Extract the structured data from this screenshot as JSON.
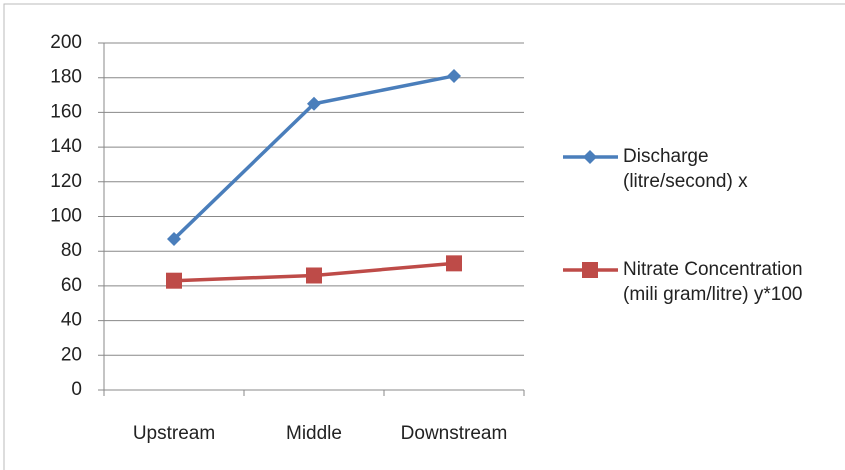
{
  "chart_data": {
    "type": "line",
    "categories": [
      "Upstream",
      "Middle",
      "Downstream"
    ],
    "series": [
      {
        "name": "Discharge (litre/second) x",
        "color": "#4a7ebb",
        "marker": "diamond",
        "values": [
          87,
          165,
          181
        ]
      },
      {
        "name": "Nitrate Concentration (mili gram/litre) y*100",
        "color": "#be4b48",
        "marker": "square",
        "values": [
          63,
          66,
          73
        ]
      }
    ],
    "ylim": [
      0,
      200
    ],
    "yticks": [
      0,
      20,
      40,
      60,
      80,
      100,
      120,
      140,
      160,
      180,
      200
    ],
    "grid": true,
    "legend": "right"
  }
}
